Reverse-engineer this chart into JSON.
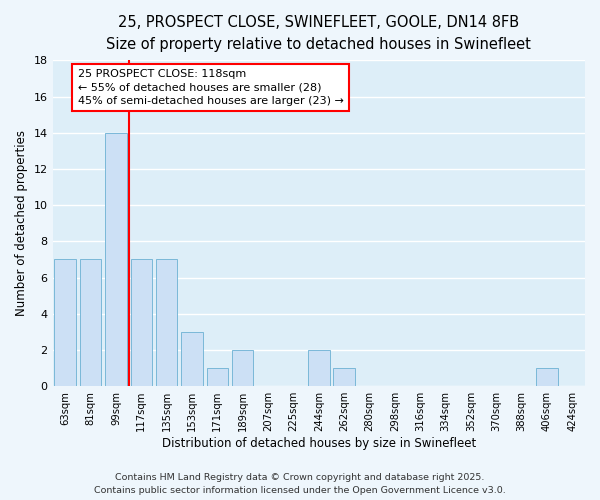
{
  "title": "25, PROSPECT CLOSE, SWINEFLEET, GOOLE, DN14 8FB",
  "subtitle": "Size of property relative to detached houses in Swinefleet",
  "xlabel": "Distribution of detached houses by size in Swinefleet",
  "ylabel": "Number of detached properties",
  "bar_color": "#cce0f5",
  "bar_edge_color": "#7ab8d8",
  "plot_bg_color": "#ddeef8",
  "fig_bg_color": "#eef6fc",
  "grid_color": "#ffffff",
  "categories": [
    "63sqm",
    "81sqm",
    "99sqm",
    "117sqm",
    "135sqm",
    "153sqm",
    "171sqm",
    "189sqm",
    "207sqm",
    "225sqm",
    "244sqm",
    "262sqm",
    "280sqm",
    "298sqm",
    "316sqm",
    "334sqm",
    "352sqm",
    "370sqm",
    "388sqm",
    "406sqm",
    "424sqm"
  ],
  "values": [
    7,
    7,
    14,
    7,
    7,
    3,
    1,
    2,
    0,
    0,
    2,
    1,
    0,
    0,
    0,
    0,
    0,
    0,
    0,
    1,
    0
  ],
  "ylim": [
    0,
    18
  ],
  "yticks": [
    0,
    2,
    4,
    6,
    8,
    10,
    12,
    14,
    16,
    18
  ],
  "marker_index": 3,
  "annotation_title": "25 PROSPECT CLOSE: 118sqm",
  "annotation_line1": "← 55% of detached houses are smaller (28)",
  "annotation_line2": "45% of semi-detached houses are larger (23) →",
  "footer1": "Contains HM Land Registry data © Crown copyright and database right 2025.",
  "footer2": "Contains public sector information licensed under the Open Government Licence v3.0.",
  "title_fontsize": 10.5,
  "subtitle_fontsize": 9.5,
  "annotation_fontsize": 8,
  "footer_fontsize": 6.8,
  "xlabel_fontsize": 8.5,
  "ylabel_fontsize": 8.5
}
